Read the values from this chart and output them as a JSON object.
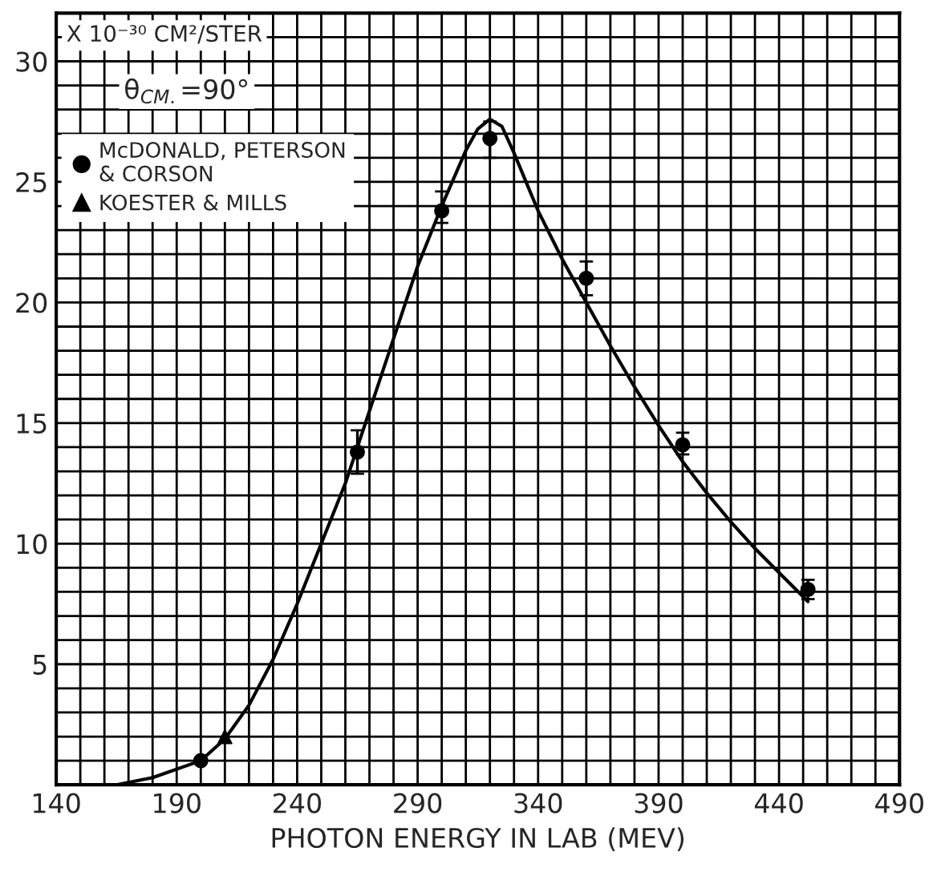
{
  "chart_data": {
    "type": "scatter",
    "xlabel": "PHOTON ENERGY IN LAB (MEV)",
    "ylabel": "X 10⁻³⁰ CM²/STER",
    "annotations": [
      "θ$_{CM.}$=90°"
    ],
    "xlim": [
      140,
      490
    ],
    "ylim": [
      0,
      32
    ],
    "xticks": [
      140,
      {
        "value": 150,
        "label": null
      },
      {
        "value": 160,
        "label": null
      },
      {
        "value": 170,
        "label": null
      },
      {
        "value": 180,
        "label": null
      },
      190,
      {
        "value": 200,
        "label": null
      },
      {
        "value": 210,
        "label": null
      },
      {
        "value": 220,
        "label": null
      },
      {
        "value": 230,
        "label": null
      },
      240,
      {
        "value": 250,
        "label": null
      },
      {
        "value": 260,
        "label": null
      },
      {
        "value": 270,
        "label": null
      },
      {
        "value": 280,
        "label": null
      },
      290,
      {
        "value": 300,
        "label": null
      },
      {
        "value": 310,
        "label": null
      },
      {
        "value": 320,
        "label": null
      },
      {
        "value": 330,
        "label": null
      },
      340,
      {
        "value": 350,
        "label": null
      },
      {
        "value": 360,
        "label": null
      },
      {
        "value": 370,
        "label": null
      },
      {
        "value": 380,
        "label": null
      },
      390,
      {
        "value": 400,
        "label": null
      },
      {
        "value": 410,
        "label": null
      },
      {
        "value": 420,
        "label": null
      },
      {
        "value": 430,
        "label": null
      },
      440,
      {
        "value": 450,
        "label": null
      },
      {
        "value": 460,
        "label": null
      },
      {
        "value": 470,
        "label": null
      },
      {
        "value": 480,
        "label": null
      },
      490
    ],
    "yticks": [
      {
        "value": 1,
        "label": null
      },
      {
        "value": 2,
        "label": null
      },
      {
        "value": 3,
        "label": null
      },
      {
        "value": 4,
        "label": null
      },
      5,
      {
        "value": 6,
        "label": null
      },
      {
        "value": 7,
        "label": null
      },
      {
        "value": 8,
        "label": null
      },
      {
        "value": 9,
        "label": null
      },
      10,
      {
        "value": 11,
        "label": null
      },
      {
        "value": 12,
        "label": null
      },
      {
        "value": 13,
        "label": null
      },
      {
        "value": 14,
        "label": null
      },
      15,
      {
        "value": 16,
        "label": null
      },
      {
        "value": 17,
        "label": null
      },
      {
        "value": 18,
        "label": null
      },
      {
        "value": 19,
        "label": null
      },
      20,
      {
        "value": 21,
        "label": null
      },
      {
        "value": 22,
        "label": null
      },
      {
        "value": 23,
        "label": null
      },
      {
        "value": 24,
        "label": null
      },
      25,
      {
        "value": 26,
        "label": null
      },
      {
        "value": 27,
        "label": null
      },
      {
        "value": 28,
        "label": null
      },
      {
        "value": 29,
        "label": null
      },
      30,
      {
        "value": 31,
        "label": null
      }
    ],
    "grid": true,
    "legend": "top left",
    "series": [
      {
        "name": "McDONALD, PETERSON\n& CORSON",
        "marker": "circle",
        "color": "#000000",
        "x": [
          200,
          265,
          300,
          320,
          360,
          400,
          452
        ],
        "values": [
          1.0,
          13.8,
          23.8,
          26.8,
          21.0,
          14.1,
          8.1
        ],
        "errors": [
          null,
          [
            12.9,
            14.7
          ],
          [
            23.3,
            24.6
          ],
          [
            26.0,
            27.5
          ],
          [
            20.3,
            21.7
          ],
          [
            13.7,
            14.6
          ],
          [
            7.7,
            8.5
          ]
        ]
      },
      {
        "name": "KOESTER & MILLS",
        "marker": "triangle",
        "color": "#000000",
        "x": [
          210
        ],
        "values": [
          2.0
        ]
      },
      {
        "type": "line",
        "marker": "none",
        "line_style": "solid",
        "color": "#000000",
        "x": [
          165,
          180,
          200,
          210,
          220,
          230,
          240,
          250,
          260,
          270,
          280,
          290,
          300,
          310,
          315,
          320,
          325,
          330,
          340,
          350,
          360,
          370,
          380,
          390,
          400,
          410,
          420,
          430,
          440,
          450,
          452
        ],
        "values": [
          0,
          0.3,
          1.0,
          1.9,
          3.3,
          5.2,
          7.5,
          10,
          12.5,
          15.5,
          18.5,
          21.5,
          24,
          26.3,
          27.2,
          27.6,
          27.3,
          26.2,
          23.8,
          21.8,
          20.0,
          18.2,
          16.5,
          14.9,
          13.4,
          12.1,
          10.9,
          9.8,
          8.8,
          7.8,
          7.6
        ]
      }
    ]
  }
}
